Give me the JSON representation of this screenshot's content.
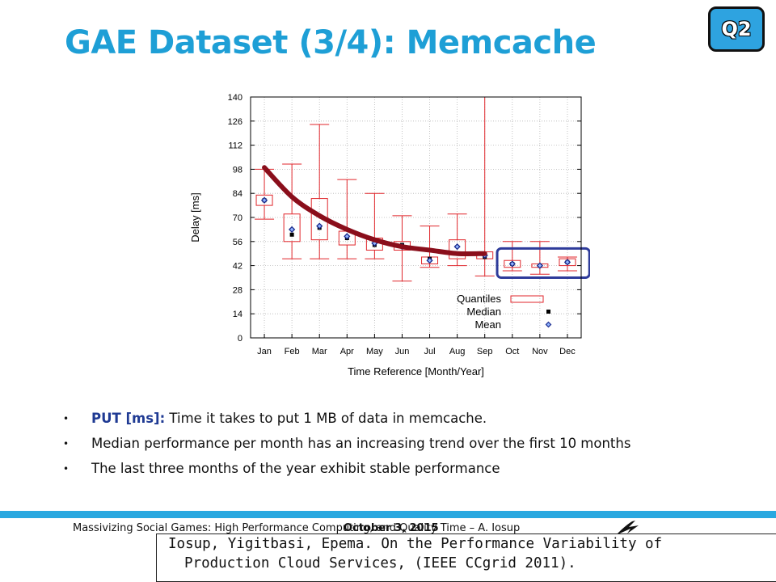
{
  "slide": {
    "title": "GAE Dataset (3/4): Memcache",
    "badge": "Q2",
    "bullets": [
      {
        "keyword": "PUT [ms]:",
        "text": " Time it takes to put 1 MB of data in memcache."
      },
      {
        "keyword": "",
        "text": "Median performance per month has an increasing trend over the first 10 months"
      },
      {
        "keyword": "",
        "text": "The last three months of the year exhibit stable performance"
      }
    ],
    "footer": {
      "text": "Massivizing Social Games: High Performance Computing, and Quality Time – A. Iosup",
      "date": "October 3, 2015"
    },
    "citation": {
      "line1": "Iosup, Yigitbasi, Epema. On the Performance Variability of",
      "line2": "Production Cloud Services, (IEEE CCgrid 2011)."
    }
  },
  "chart_data": {
    "type": "box",
    "xlabel": "Time Reference [Month/Year]",
    "ylabel": "Delay [ms]",
    "ylim": [
      0,
      140
    ],
    "yticks": [
      0,
      14,
      28,
      42,
      56,
      70,
      84,
      98,
      112,
      126,
      140
    ],
    "categories": [
      "Jan",
      "Feb",
      "Mar",
      "Apr",
      "May",
      "Jun",
      "Jul",
      "Aug",
      "Sep",
      "Oct",
      "Nov",
      "Dec"
    ],
    "boxes": [
      {
        "whisker_low": 69,
        "q1": 77,
        "q3": 83,
        "whisker_high": 98
      },
      {
        "whisker_low": 46,
        "q1": 56,
        "q3": 72,
        "whisker_high": 101
      },
      {
        "whisker_low": 46,
        "q1": 57,
        "q3": 81,
        "whisker_high": 124
      },
      {
        "whisker_low": 46,
        "q1": 54,
        "q3": 62,
        "whisker_high": 92
      },
      {
        "whisker_low": 46,
        "q1": 51,
        "q3": 58,
        "whisker_high": 84
      },
      {
        "whisker_low": 33,
        "q1": 51,
        "q3": 56,
        "whisker_high": 71
      },
      {
        "whisker_low": 41,
        "q1": 43,
        "q3": 47,
        "whisker_high": 65
      },
      {
        "whisker_low": 42,
        "q1": 46,
        "q3": 57,
        "whisker_high": 72
      },
      {
        "whisker_low": 36,
        "q1": 46,
        "q3": 50,
        "whisker_high": 140
      },
      {
        "whisker_low": 39,
        "q1": 41,
        "q3": 45,
        "whisker_high": 56
      },
      {
        "whisker_low": 37,
        "q1": 41,
        "q3": 43,
        "whisker_high": 56
      },
      {
        "whisker_low": 39,
        "q1": 42,
        "q3": 46,
        "whisker_high": 47
      }
    ],
    "median": [
      80,
      60,
      64,
      58,
      54,
      54,
      46,
      49,
      47,
      43,
      42,
      44
    ],
    "mean": [
      80,
      63,
      65,
      59,
      55,
      53,
      45,
      53,
      48,
      43,
      42,
      44
    ],
    "trend": [
      {
        "x": "Jan",
        "y": 99
      },
      {
        "x": "Feb",
        "y": 82
      },
      {
        "x": "Mar",
        "y": 71
      },
      {
        "x": "Apr",
        "y": 63
      },
      {
        "x": "May",
        "y": 57
      },
      {
        "x": "Jun",
        "y": 53
      },
      {
        "x": "Jul",
        "y": 51
      },
      {
        "x": "Aug",
        "y": 49
      },
      {
        "x": "Sep",
        "y": 49
      }
    ],
    "highlight": {
      "from": "Oct",
      "to": "Dec"
    },
    "legend": {
      "items": [
        "Quantiles",
        "Median",
        "Mean"
      ],
      "placement": "bottom-right"
    },
    "colors": {
      "box": "#e0262b",
      "median": "#000000",
      "mean": "#1b2a8c",
      "trend": "#8a0e1b",
      "highlight": "#2e3b9a"
    }
  }
}
